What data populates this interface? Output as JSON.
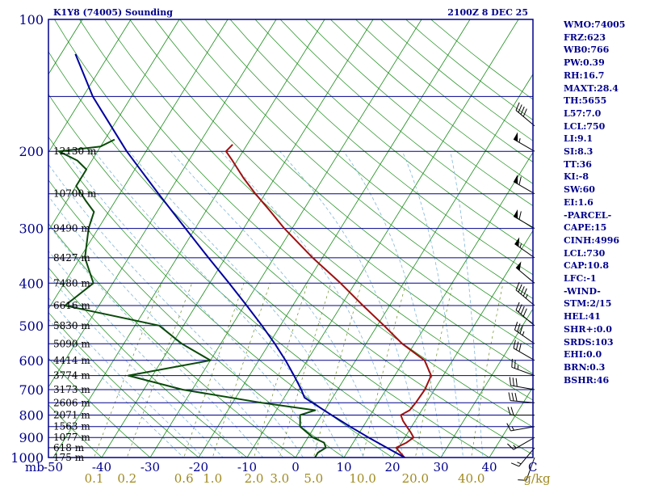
{
  "header": {
    "station": "K1Y8 (74005) Sounding",
    "time": "2100Z  8 DEC 25"
  },
  "indices": [
    "WMO:74005",
    "FRZ:623",
    "WB0:766",
    "PW:0.39",
    "RH:16.7",
    "MAXT:28.4",
    "TH:5655",
    "L57:7.0",
    "LCL:750",
    "LI:9.1",
    "SI:8.3",
    "TT:36",
    "KI:-8",
    "SW:60",
    "EI:1.6",
    "-PARCEL-",
    "CAPE:15",
    "CINH:4996",
    "LCL:730",
    "CAP:10.8",
    "LFC:-1",
    "-WIND-",
    "STM:2/15",
    "HEL:41",
    "SHR+:0.0",
    "SRDS:103",
    "EHI:0.0",
    "BRN:0.3",
    "BSHR:46"
  ],
  "colors": {
    "frame": "#00008b",
    "isobar": "#00008b",
    "isotherm": "#1a8c1a",
    "dry_adiabat": "#1a8c1a",
    "moist_adiabat": "#7fb7d9",
    "mixing_ratio": "#6b8e23",
    "temperature": "#a01010",
    "dewpoint": "#0a4a0a",
    "parcel": "#0000a0",
    "wind_barb": "#000000",
    "axis_text": "#00008b",
    "mixing_text": "#a08a20"
  },
  "chart_data": {
    "type": "line",
    "title": "K1Y8 (74005) Sounding",
    "xlabel": "C",
    "ylabel": "mb",
    "x_ticks": [
      -50,
      -40,
      -30,
      -20,
      -10,
      0,
      10,
      20,
      30,
      40
    ],
    "x_tick_labels": [
      "-50",
      "-40",
      "-30",
      "-20",
      "-10",
      "0",
      "10",
      "20",
      "30",
      "40"
    ],
    "y_ticks": [
      100,
      200,
      300,
      400,
      500,
      600,
      700,
      800,
      900,
      1000
    ],
    "y_tick_labels": [
      "100",
      "200",
      "300",
      "400",
      "500",
      "600",
      "700",
      "800",
      "900",
      "1000"
    ],
    "xlim": [
      -50,
      50
    ],
    "ylim": [
      1000,
      100
    ],
    "y_scale": "log",
    "mixing_ratio_labels": [
      "0.1",
      "0.2",
      "0.6",
      "1.0",
      "2.0",
      "3.0",
      "5.0",
      "10.0",
      "20.0",
      "40.0",
      "g/kg"
    ],
    "mixing_ratio_values": [
      0.1,
      0.2,
      0.6,
      1.0,
      2.0,
      3.0,
      5.0,
      10.0,
      20.0,
      40.0
    ],
    "height_labels": [
      {
        "p": 200,
        "label": "12130 m"
      },
      {
        "p": 250,
        "label": "10700 m"
      },
      {
        "p": 300,
        "label": "9490 m"
      },
      {
        "p": 350,
        "label": "8427 m"
      },
      {
        "p": 400,
        "label": "7480 m"
      },
      {
        "p": 450,
        "label": "6616 m"
      },
      {
        "p": 500,
        "label": "5830 m"
      },
      {
        "p": 550,
        "label": "5090 m"
      },
      {
        "p": 600,
        "label": "4414 m"
      },
      {
        "p": 650,
        "label": "3774 m"
      },
      {
        "p": 700,
        "label": "3173 m"
      },
      {
        "p": 750,
        "label": "2606 m"
      },
      {
        "p": 800,
        "label": "2071 m"
      },
      {
        "p": 850,
        "label": "1563 m"
      },
      {
        "p": 900,
        "label": "1077 m"
      },
      {
        "p": 950,
        "label": "618 m"
      },
      {
        "p": 1000,
        "label": "175 m"
      }
    ],
    "series": [
      {
        "name": "",
        "kind": "temperature",
        "points": [
          [
            1012,
            23.5
          ],
          [
            1000,
            22.5
          ],
          [
            975,
            21.0
          ],
          [
            950,
            19.5
          ],
          [
            925,
            21.0
          ],
          [
            900,
            21.8
          ],
          [
            875,
            20.5
          ],
          [
            850,
            19.0
          ],
          [
            825,
            17.5
          ],
          [
            800,
            16.3
          ],
          [
            780,
            17.5
          ],
          [
            750,
            17.8
          ],
          [
            700,
            18.0
          ],
          [
            650,
            17.5
          ],
          [
            600,
            14.2
          ],
          [
            550,
            7.5
          ],
          [
            500,
            1.4
          ],
          [
            450,
            -5.5
          ],
          [
            400,
            -13.0
          ],
          [
            350,
            -22.0
          ],
          [
            300,
            -31.6
          ],
          [
            275,
            -36.5
          ],
          [
            250,
            -42.0
          ],
          [
            230,
            -46.5
          ],
          [
            210,
            -51.0
          ],
          [
            200,
            -53.5
          ],
          [
            193,
            -53.0
          ]
        ]
      },
      {
        "name": "",
        "kind": "dewpoint",
        "points": [
          [
            1000,
            4.0
          ],
          [
            975,
            4.0
          ],
          [
            950,
            5.0
          ],
          [
            925,
            4.0
          ],
          [
            900,
            1.0
          ],
          [
            850,
            -3.0
          ],
          [
            800,
            -4.5
          ],
          [
            780,
            -2.0
          ],
          [
            750,
            -14.0
          ],
          [
            700,
            -32.0
          ],
          [
            650,
            -45.0
          ],
          [
            600,
            -30.0
          ],
          [
            550,
            -38.0
          ],
          [
            500,
            -45.0
          ],
          [
            450,
            -67.0
          ],
          [
            400,
            -64.0
          ],
          [
            350,
            -69.0
          ],
          [
            300,
            -72.0
          ],
          [
            275,
            -73.0
          ],
          [
            260,
            -76.0
          ],
          [
            240,
            -80.0
          ],
          [
            220,
            -80.0
          ],
          [
            210,
            -83.0
          ],
          [
            200,
            -88.0
          ],
          [
            195,
            -80.0
          ],
          [
            188,
            -78.0
          ]
        ]
      },
      {
        "name": "",
        "kind": "parcel",
        "points": [
          [
            1012,
            23.5
          ],
          [
            1000,
            22.5
          ],
          [
            950,
            17.6
          ],
          [
            900,
            12.5
          ],
          [
            850,
            7.3
          ],
          [
            800,
            2.0
          ],
          [
            750,
            -3.5
          ],
          [
            730,
            -5.8
          ],
          [
            700,
            -7.5
          ],
          [
            650,
            -10.8
          ],
          [
            600,
            -14.5
          ],
          [
            550,
            -18.8
          ],
          [
            500,
            -23.8
          ],
          [
            450,
            -29.5
          ],
          [
            400,
            -36.0
          ],
          [
            350,
            -43.5
          ],
          [
            300,
            -52.0
          ],
          [
            250,
            -62.0
          ],
          [
            200,
            -74.0
          ],
          [
            150,
            -88.0
          ],
          [
            120,
            -97.0
          ]
        ]
      }
    ],
    "wind_barbs": [
      {
        "p": 1000,
        "dir": 200,
        "spd": 10
      },
      {
        "p": 950,
        "dir": 220,
        "spd": 15
      },
      {
        "p": 900,
        "dir": 240,
        "spd": 15
      },
      {
        "p": 850,
        "dir": 260,
        "spd": 15
      },
      {
        "p": 800,
        "dir": 270,
        "spd": 20
      },
      {
        "p": 750,
        "dir": 275,
        "spd": 30
      },
      {
        "p": 700,
        "dir": 280,
        "spd": 30
      },
      {
        "p": 650,
        "dir": 290,
        "spd": 25
      },
      {
        "p": 600,
        "dir": 300,
        "spd": 30
      },
      {
        "p": 550,
        "dir": 305,
        "spd": 35
      },
      {
        "p": 500,
        "dir": 310,
        "spd": 40
      },
      {
        "p": 450,
        "dir": 310,
        "spd": 45
      },
      {
        "p": 400,
        "dir": 310,
        "spd": 50
      },
      {
        "p": 350,
        "dir": 305,
        "spd": 55
      },
      {
        "p": 300,
        "dir": 300,
        "spd": 60
      },
      {
        "p": 250,
        "dir": 300,
        "spd": 60
      },
      {
        "p": 200,
        "dir": 300,
        "spd": 55
      },
      {
        "p": 175,
        "dir": 310,
        "spd": 40
      }
    ]
  }
}
